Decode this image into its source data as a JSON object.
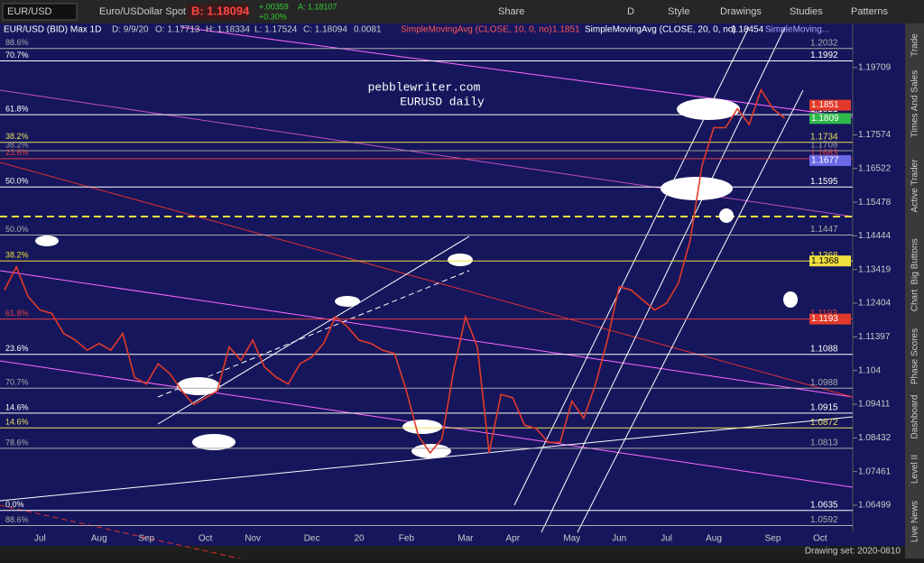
{
  "toolbar": {
    "symbol": "EUR/USD",
    "description": "Euro/USDollar Spot",
    "bid": "B: 1.18094",
    "change": "+.00359",
    "change_pct": "+0.30%",
    "ask": "A: 1.18107",
    "buttons": [
      "Share",
      "D",
      "Style",
      "Drawings",
      "Studies",
      "Patterns"
    ]
  },
  "header": {
    "study_labels": [
      "EUR/USD (BID) Max 1D",
      "D: 9/9/20",
      "O: 1.17713",
      "H: 1.18334",
      "L: 1.17524",
      "C: 1.18094",
      "0.0081",
      "SimpleMovingAvg (CLOSE, 10, 0, no)",
      "1.1851",
      "SimpleMovingAvg (CLOSE, 20, 0, no)",
      "1.18454",
      "SimpleMoving..."
    ]
  },
  "watermark": [
    "pebblewriter.com",
    "EURUSD daily"
  ],
  "sidebar": [
    "Trade",
    "Times And Sales",
    "Active Trader",
    "Big Buttons",
    "Chart",
    "Phase Scores",
    "Dashboard",
    "Level II",
    "Live News"
  ],
  "footer": "Drawing set: 2020-0810",
  "chart_data": {
    "type": "line",
    "log": true,
    "categories": [
      null,
      null,
      null,
      "Jul",
      null,
      null,
      null,
      null,
      "Aug",
      null,
      null,
      null,
      "Sep",
      null,
      null,
      null,
      null,
      "Oct",
      null,
      null,
      null,
      "Nov",
      null,
      null,
      null,
      null,
      "Dec",
      null,
      null,
      null,
      "20",
      null,
      null,
      null,
      "Feb",
      null,
      null,
      null,
      null,
      "Mar",
      null,
      null,
      null,
      "Apr",
      null,
      null,
      null,
      null,
      "May",
      null,
      null,
      null,
      "Jun",
      null,
      null,
      null,
      "Jul",
      null,
      null,
      null,
      "Aug",
      null,
      null,
      null,
      null,
      "Sep",
      null,
      null,
      null,
      "Oct"
    ],
    "series": [
      {
        "name": "EUR/USD (BID) Max 1D",
        "color": "#e23a2a",
        "values": [
          1.128,
          1.135,
          1.126,
          1.122,
          1.121,
          1.115,
          1.113,
          1.11,
          1.112,
          1.11,
          1.115,
          1.102,
          1.1,
          1.106,
          1.103,
          1.098,
          1.094,
          1.096,
          1.098,
          1.111,
          1.107,
          1.113,
          1.105,
          1.102,
          1.1,
          1.106,
          1.108,
          1.112,
          1.12,
          1.117,
          1.113,
          1.112,
          1.11,
          1.109,
          1.098,
          1.085,
          1.08,
          1.084,
          1.104,
          1.12,
          1.111,
          1.08,
          1.097,
          1.096,
          1.088,
          1.087,
          1.083,
          1.083,
          1.095,
          1.09,
          1.1,
          1.113,
          1.129,
          1.128,
          1.125,
          1.122,
          1.124,
          1.13,
          1.143,
          1.166,
          1.178,
          1.178,
          1.184,
          1.179,
          1.19,
          1.184,
          1.181,
          null,
          null,
          null
        ]
      }
    ],
    "ylim": [
      1.0573,
      1.2101
    ],
    "yticks": [
      1.19709,
      1.17574,
      1.16522,
      1.15478,
      1.14444,
      1.13419,
      1.12404,
      1.11397,
      1.104,
      1.09411,
      1.08432,
      1.07461,
      1.06499
    ],
    "levels": [
      {
        "value": 1.2032,
        "pct": "88.6%",
        "color": "#aaaaaa"
      },
      {
        "value": 1.1992,
        "pct": "70.7%",
        "color": "#ffffff"
      },
      {
        "value": 1.1821,
        "pct": "61.8%",
        "color": "#ffffff"
      },
      {
        "value": 1.1734,
        "pct": "38.2%",
        "color": "#e8e060"
      },
      {
        "value": 1.1708,
        "pct": "38.2%",
        "color": "#999999"
      },
      {
        "value": 1.1683,
        "pct": "23.6%",
        "color": "#e04040"
      },
      {
        "value": 1.1595,
        "pct": "50.0%",
        "color": "#ffffff"
      },
      {
        "value": 1.1447,
        "pct": "50.0%",
        "color": "#aaaaaa"
      },
      {
        "value": 1.1368,
        "pct": "38.2%",
        "color": "#f0e040"
      },
      {
        "value": 1.1193,
        "pct": "61.8%",
        "color": "#e04040"
      },
      {
        "value": 1.1088,
        "pct": "23.6%",
        "color": "#ffffff"
      },
      {
        "value": 1.0988,
        "pct": "70.7%",
        "color": "#aaaaaa"
      },
      {
        "value": 1.0915,
        "pct": "14.6%",
        "color": "#ffffff"
      },
      {
        "value": 1.0872,
        "pct": "14.6%",
        "color": "#e8e060"
      },
      {
        "value": 1.0813,
        "pct": "78.6%",
        "color": "#aaaaaa"
      },
      {
        "value": 1.0635,
        "pct": "0.0%",
        "color": "#ffffff"
      },
      {
        "value": 1.0592,
        "pct": "88.6%",
        "color": "#aaaaaa"
      }
    ],
    "price_tags": [
      {
        "value": 1.1851,
        "color": "#e23a2a"
      },
      {
        "value": 1.1809,
        "color": "#2fb84a"
      },
      {
        "value": 1.1677,
        "color": "#6a6ae8"
      },
      {
        "value": 1.1368,
        "color": "#f0e040"
      },
      {
        "value": 1.1193,
        "color": "#e23a2a"
      }
    ]
  }
}
